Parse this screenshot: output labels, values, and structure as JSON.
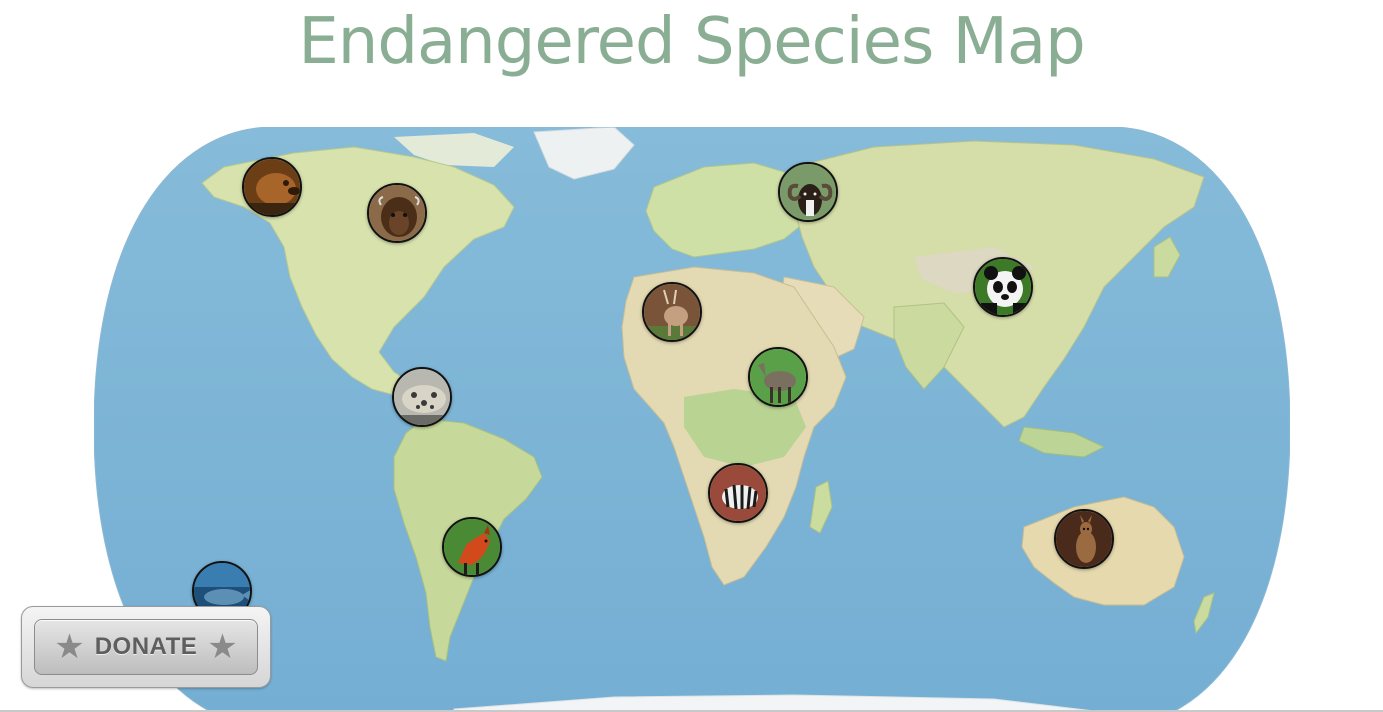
{
  "page": {
    "title": "Endangered Species Map"
  },
  "map": {
    "projection": "natural earth (rounded pseudo-cylindrical)",
    "ocean_color": "#7fb5d6",
    "land_color": "#d8e3b0",
    "ice_color": "#f2f4f5"
  },
  "species_markers": [
    {
      "name": "brown-bear",
      "region": "Alaska",
      "icon": "bear-photo",
      "colors": [
        "#6b3e16",
        "#b07030",
        "#2e1a08"
      ]
    },
    {
      "name": "american-bison",
      "region": "North America",
      "icon": "bison-photo",
      "colors": [
        "#5a3a20",
        "#8a6038",
        "#2a1a0e"
      ]
    },
    {
      "name": "ocelot",
      "region": "Central America",
      "icon": "ocelot-photo",
      "colors": [
        "#8c8c8c",
        "#c8c8c0",
        "#3a3a3a"
      ]
    },
    {
      "name": "maned-wolf",
      "region": "South America",
      "icon": "maned-wolf-photo",
      "colors": [
        "#3e7a2c",
        "#d24a1c",
        "#1c3a14"
      ]
    },
    {
      "name": "whale",
      "region": "Pacific Ocean",
      "icon": "whale-photo",
      "colors": [
        "#1d4f7a",
        "#3a7db0",
        "#0e2a44"
      ]
    },
    {
      "name": "mouflon",
      "region": "Europe",
      "icon": "mouflon-photo",
      "colors": [
        "#6a8a5a",
        "#2a2018",
        "#eeeeee"
      ]
    },
    {
      "name": "addax",
      "region": "Sahara",
      "icon": "addax-photo",
      "colors": [
        "#8a6040",
        "#c4a080",
        "#4a3020"
      ]
    },
    {
      "name": "wild-ass",
      "region": "East Africa",
      "icon": "donkey-photo",
      "colors": [
        "#5aa048",
        "#7a7060",
        "#2a3a18"
      ]
    },
    {
      "name": "zebra",
      "region": "Southern Africa",
      "icon": "zebra-photo",
      "colors": [
        "#9a4a3a",
        "#f0f0f0",
        "#1a1a1a"
      ]
    },
    {
      "name": "giant-panda",
      "region": "China",
      "icon": "panda-photo",
      "colors": [
        "#3c7a28",
        "#f4f4f4",
        "#111111"
      ]
    },
    {
      "name": "kangaroo",
      "region": "Australia",
      "icon": "kangaroo-photo",
      "colors": [
        "#4a2a1a",
        "#9a6a40",
        "#2a160c"
      ]
    }
  ],
  "donate": {
    "label": "DONATE",
    "star_left": "★",
    "star_right": "★"
  }
}
